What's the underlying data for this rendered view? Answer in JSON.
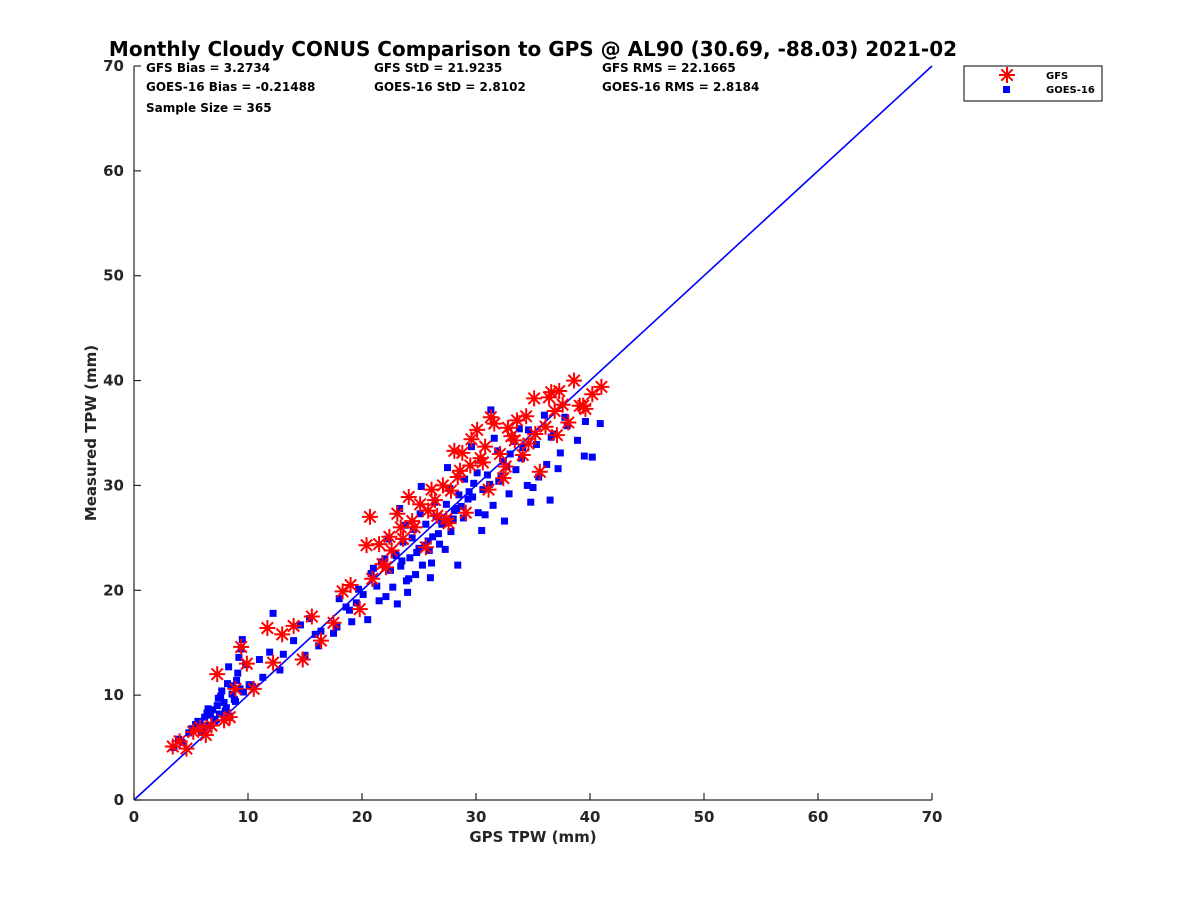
{
  "chart_data": {
    "type": "scatter",
    "title": "Monthly Cloudy CONUS Comparison to GPS @ AL90 (30.69, -88.03) 2021-02",
    "xlabel": "GPS TPW (mm)",
    "ylabel": "Measured TPW (mm)",
    "xlim": [
      0,
      70
    ],
    "ylim": [
      0,
      70
    ],
    "xticks": [
      "0",
      "10",
      "20",
      "30",
      "40",
      "50",
      "60",
      "70"
    ],
    "yticks": [
      "0",
      "10",
      "20",
      "30",
      "40",
      "50",
      "60",
      "70"
    ],
    "grid": false,
    "legend_position": "top-right outside",
    "stats": [
      "GFS Bias = 3.2734",
      "GFS StD = 21.9235",
      "GFS RMS = 22.1665",
      "GOES-16 Bias = -0.21488",
      "GOES-16 StD = 2.8102",
      "GOES-16 RMS = 2.8184",
      "Sample Size = 365"
    ],
    "reference_line": {
      "name": "1:1 line",
      "x": [
        0,
        70
      ],
      "y": [
        0,
        70
      ],
      "color": "#0000ff"
    },
    "series": [
      {
        "name": "GOES-16",
        "marker": "square",
        "color": "#0000ff",
        "x": [
          3.5,
          3.9,
          4.2,
          4.8,
          5.1,
          5.4,
          5.6,
          5.9,
          6.2,
          6.4,
          6.6,
          6.9,
          7.1,
          7.3,
          7.5,
          7.7,
          7.9,
          8.1,
          8.3,
          8.5,
          8.8,
          9.0,
          9.2,
          9.5,
          5.8,
          6.7,
          7.4,
          8.0,
          8.6,
          9.1,
          9.4,
          7.0,
          7.6,
          8.2,
          6.1,
          6.5,
          9.3,
          9.8,
          10.4,
          11.0,
          11.9,
          12.2,
          13.1,
          14.0,
          14.6,
          15.4,
          15.9,
          16.4,
          17.5,
          18.0,
          18.6,
          19.1,
          19.7,
          20.1,
          20.8,
          21.3,
          21.7,
          22.1,
          22.5,
          22.9,
          23.1,
          23.4,
          23.6,
          23.9,
          24.2,
          24.5,
          24.7,
          25.0,
          25.3,
          25.6,
          25.9,
          26.2,
          26.5,
          26.8,
          27.1,
          27.4,
          27.8,
          28.1,
          28.5,
          28.9,
          29.3,
          29.8,
          30.2,
          30.6,
          31.0,
          31.5,
          32.0,
          32.4,
          32.9,
          33.5,
          34.1,
          34.8,
          35.5,
          36.2,
          36.8,
          37.4,
          38.0,
          38.9,
          39.6,
          40.2,
          40.9,
          21.0,
          22.3,
          23.0,
          23.8,
          24.4,
          25.1,
          25.8,
          26.4,
          27.0,
          27.7,
          28.3,
          29.0,
          29.7,
          30.4,
          31.2,
          31.9,
          32.7,
          33.3,
          34.0,
          34.6,
          35.3,
          36.0,
          36.6,
          37.2,
          22.7,
          23.5,
          24.1,
          24.8,
          25.5,
          26.1,
          26.7,
          27.3,
          28.0,
          28.7,
          29.4,
          30.1,
          30.8,
          31.6,
          32.2,
          33.0,
          33.8,
          35.0,
          37.8,
          39.5,
          22.0,
          24.0,
          26.0,
          28.4,
          30.5,
          32.5,
          34.5,
          36.5,
          19.5,
          20.5,
          21.5,
          17.8,
          18.9,
          16.2,
          15.0,
          12.8,
          11.3,
          10.1,
          8.9,
          8.4,
          9.6,
          23.3,
          25.2,
          27.5,
          29.6,
          31.3
        ],
        "y": [
          5.0,
          5.8,
          5.5,
          6.4,
          6.8,
          7.2,
          7.5,
          6.6,
          7.9,
          8.3,
          7.1,
          8.6,
          7.7,
          9.0,
          8.2,
          10.4,
          9.3,
          8.8,
          12.7,
          10.9,
          9.6,
          11.4,
          13.6,
          15.3,
          7.3,
          8.1,
          9.7,
          8.5,
          10.1,
          12.1,
          14.4,
          7.6,
          9.9,
          11.1,
          6.9,
          8.7,
          10.6,
          12.9,
          10.8,
          13.4,
          14.1,
          17.8,
          13.9,
          15.2,
          16.7,
          17.3,
          15.8,
          16.1,
          15.9,
          19.2,
          18.4,
          17.0,
          20.1,
          19.6,
          21.6,
          20.4,
          22.7,
          19.4,
          21.9,
          23.5,
          18.7,
          22.3,
          24.6,
          20.9,
          23.1,
          25.8,
          21.5,
          24.0,
          22.4,
          26.3,
          23.8,
          25.1,
          27.0,
          24.4,
          26.5,
          28.2,
          25.6,
          27.6,
          29.1,
          26.9,
          28.7,
          30.2,
          27.4,
          29.6,
          31.0,
          28.1,
          30.4,
          32.3,
          29.2,
          31.5,
          33.6,
          28.4,
          30.8,
          32.0,
          34.9,
          33.1,
          35.7,
          34.3,
          36.1,
          32.7,
          35.9,
          22.1,
          24.9,
          23.3,
          26.2,
          25.0,
          27.3,
          24.7,
          28.4,
          26.3,
          29.7,
          27.8,
          30.6,
          28.9,
          32.4,
          30.1,
          33.3,
          31.8,
          34.2,
          32.6,
          35.3,
          33.9,
          36.7,
          34.6,
          31.6,
          20.3,
          22.8,
          21.1,
          23.6,
          24.3,
          22.6,
          25.4,
          23.9,
          26.8,
          28.0,
          29.4,
          31.2,
          27.2,
          34.5,
          30.9,
          33.0,
          35.4,
          29.8,
          36.5,
          32.8,
          23.0,
          19.8,
          21.2,
          22.4,
          25.7,
          26.6,
          30.0,
          28.6,
          18.8,
          17.2,
          19.0,
          16.5,
          18.1,
          14.7,
          13.8,
          12.4,
          11.7,
          11.0,
          9.4,
          8.0,
          10.3,
          27.8,
          29.9,
          31.7,
          33.7,
          37.2
        ]
      },
      {
        "name": "GFS",
        "marker": "asterisk",
        "color": "#ff0000",
        "x": [
          3.4,
          4.0,
          4.6,
          5.2,
          5.8,
          6.3,
          6.8,
          7.3,
          7.9,
          8.4,
          8.9,
          9.4,
          9.9,
          10.5,
          11.7,
          12.2,
          13.0,
          14.0,
          14.8,
          15.6,
          16.4,
          17.5,
          18.3,
          19.0,
          19.8,
          20.4,
          20.9,
          21.5,
          22.1,
          22.6,
          23.1,
          23.6,
          24.1,
          24.6,
          25.1,
          25.6,
          26.1,
          26.6,
          27.1,
          27.6,
          28.1,
          28.6,
          29.1,
          29.6,
          30.1,
          30.6,
          31.1,
          31.6,
          32.1,
          32.6,
          33.1,
          33.6,
          34.1,
          34.6,
          35.1,
          35.6,
          36.1,
          36.6,
          37.1,
          37.6,
          38.1,
          38.6,
          39.1,
          39.6,
          40.2,
          41.0,
          23.4,
          25.8,
          27.4,
          28.8,
          30.4,
          32.4,
          34.4,
          36.4,
          20.7,
          22.4,
          24.4,
          26.4,
          28.4,
          30.8,
          32.8,
          35.2,
          37.3,
          39.4,
          21.8,
          27.8,
          29.5,
          31.3,
          33.4,
          36.9
        ],
        "y": [
          5.1,
          5.6,
          4.9,
          6.5,
          6.9,
          6.2,
          7.1,
          12.0,
          7.6,
          7.9,
          10.6,
          14.6,
          13.0,
          10.6,
          16.4,
          13.1,
          15.8,
          16.6,
          13.4,
          17.5,
          15.2,
          16.9,
          19.9,
          20.5,
          18.2,
          24.3,
          21.1,
          24.4,
          22.2,
          23.8,
          27.3,
          24.9,
          28.9,
          26.0,
          28.2,
          24.1,
          29.6,
          27.1,
          30.0,
          26.4,
          33.3,
          31.4,
          27.4,
          34.4,
          35.3,
          32.2,
          29.6,
          35.9,
          33.0,
          31.8,
          34.7,
          36.2,
          32.9,
          34.0,
          38.3,
          31.3,
          35.6,
          38.9,
          34.8,
          37.7,
          36.0,
          40.0,
          37.6,
          37.3,
          38.7,
          39.4,
          26.0,
          27.6,
          26.8,
          33.1,
          32.6,
          30.7,
          36.6,
          38.4,
          27.0,
          25.1,
          26.6,
          28.6,
          30.8,
          33.7,
          35.5,
          34.9,
          39.0,
          37.6,
          22.5,
          29.5,
          31.9,
          36.5,
          34.3,
          37.1
        ]
      }
    ]
  }
}
